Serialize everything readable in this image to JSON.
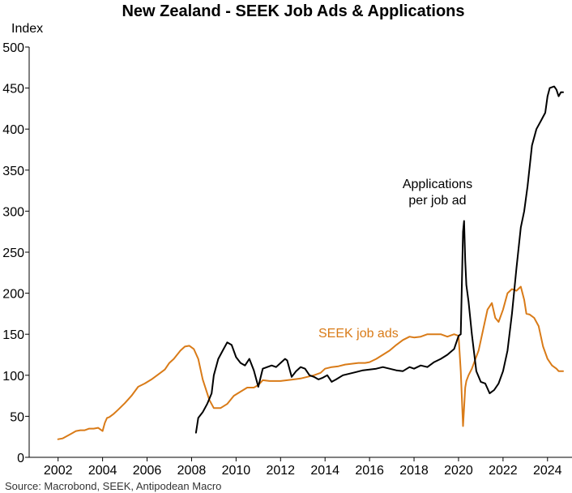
{
  "chart_data": {
    "type": "line",
    "title": "New Zealand - SEEK Job Ads & Applications",
    "ylabel": "Index",
    "source": "Source: Macrobond, SEEK, Antipodean Macro",
    "xlim": [
      2000.7,
      2025.1
    ],
    "ylim": [
      0,
      500
    ],
    "x_ticks": [
      2002,
      2004,
      2006,
      2008,
      2010,
      2012,
      2014,
      2016,
      2018,
      2020,
      2022,
      2024
    ],
    "y_ticks": [
      0,
      50,
      100,
      150,
      200,
      250,
      300,
      350,
      400,
      450,
      500
    ],
    "grid": false,
    "colors": {
      "job_ads": "#d97b18",
      "applications": "#000000"
    },
    "annotations": {
      "applications": [
        "Applications",
        "per job ad"
      ],
      "job_ads": "SEEK job ads"
    },
    "series": [
      {
        "name": "SEEK job ads",
        "key": "job_ads",
        "x": [
          2002.0,
          2002.2,
          2002.4,
          2002.6,
          2002.8,
          2003.0,
          2003.2,
          2003.4,
          2003.6,
          2003.8,
          2004.0,
          2004.1,
          2004.2,
          2004.3,
          2004.5,
          2004.7,
          2005.0,
          2005.3,
          2005.6,
          2005.9,
          2006.2,
          2006.5,
          2006.8,
          2007.0,
          2007.2,
          2007.5,
          2007.7,
          2007.9,
          2008.1,
          2008.3,
          2008.5,
          2008.8,
          2009.0,
          2009.3,
          2009.6,
          2009.9,
          2010.2,
          2010.5,
          2010.8,
          2011.0,
          2011.2,
          2011.5,
          2011.8,
          2012.0,
          2012.3,
          2012.6,
          2012.9,
          2013.2,
          2013.5,
          2013.8,
          2014.0,
          2014.3,
          2014.6,
          2014.9,
          2015.2,
          2015.5,
          2015.8,
          2016.0,
          2016.3,
          2016.6,
          2016.9,
          2017.2,
          2017.5,
          2017.8,
          2018.0,
          2018.3,
          2018.6,
          2018.9,
          2019.2,
          2019.5,
          2019.8,
          2020.0,
          2020.1,
          2020.2,
          2020.25,
          2020.3,
          2020.35,
          2020.45,
          2020.6,
          2020.9,
          2021.1,
          2021.3,
          2021.5,
          2021.65,
          2021.8,
          2022.0,
          2022.2,
          2022.4,
          2022.6,
          2022.8,
          2022.95,
          2023.05,
          2023.2,
          2023.4,
          2023.6,
          2023.8,
          2024.0,
          2024.2,
          2024.4,
          2024.5,
          2024.7
        ],
        "values": [
          22,
          23,
          26,
          29,
          32,
          33,
          33,
          35,
          35,
          36,
          32,
          42,
          48,
          49,
          53,
          58,
          66,
          75,
          86,
          90,
          95,
          101,
          107,
          115,
          120,
          130,
          135,
          136,
          132,
          120,
          95,
          70,
          60,
          60,
          65,
          75,
          80,
          85,
          85,
          88,
          94,
          93,
          93,
          93,
          94,
          95,
          96,
          98,
          100,
          103,
          108,
          110,
          111,
          113,
          114,
          115,
          115,
          116,
          120,
          125,
          130,
          137,
          143,
          147,
          146,
          147,
          150,
          150,
          150,
          147,
          150,
          148,
          105,
          38,
          60,
          85,
          93,
          100,
          108,
          130,
          155,
          180,
          188,
          170,
          165,
          180,
          200,
          205,
          203,
          208,
          192,
          175,
          174,
          170,
          160,
          135,
          120,
          112,
          108,
          105,
          105
        ]
      },
      {
        "name": "Applications per job ad",
        "key": "applications",
        "x": [
          2008.2,
          2008.3,
          2008.5,
          2008.7,
          2008.9,
          2009.0,
          2009.2,
          2009.4,
          2009.6,
          2009.8,
          2010.0,
          2010.2,
          2010.4,
          2010.6,
          2010.8,
          2011.0,
          2011.2,
          2011.4,
          2011.6,
          2011.8,
          2012.0,
          2012.2,
          2012.3,
          2012.5,
          2012.7,
          2012.9,
          2013.1,
          2013.3,
          2013.5,
          2013.7,
          2013.9,
          2014.1,
          2014.3,
          2014.5,
          2014.8,
          2015.1,
          2015.4,
          2015.7,
          2016.0,
          2016.3,
          2016.6,
          2016.9,
          2017.2,
          2017.5,
          2017.8,
          2018.0,
          2018.3,
          2018.6,
          2018.9,
          2019.2,
          2019.5,
          2019.8,
          2020.0,
          2020.1,
          2020.2,
          2020.25,
          2020.3,
          2020.35,
          2020.45,
          2020.6,
          2020.8,
          2021.0,
          2021.2,
          2021.4,
          2021.6,
          2021.8,
          2022.0,
          2022.2,
          2022.4,
          2022.6,
          2022.8,
          2022.95,
          2023.1,
          2023.3,
          2023.5,
          2023.7,
          2023.9,
          2024.0,
          2024.1,
          2024.3,
          2024.4,
          2024.5,
          2024.6,
          2024.7
        ],
        "values": [
          30,
          48,
          55,
          65,
          78,
          100,
          120,
          130,
          140,
          137,
          122,
          115,
          112,
          120,
          106,
          86,
          108,
          110,
          112,
          110,
          115,
          120,
          118,
          98,
          105,
          110,
          108,
          100,
          98,
          95,
          97,
          100,
          92,
          95,
          100,
          102,
          104,
          106,
          107,
          108,
          110,
          108,
          106,
          105,
          110,
          108,
          112,
          110,
          116,
          120,
          125,
          132,
          148,
          150,
          275,
          288,
          240,
          210,
          190,
          150,
          105,
          92,
          90,
          78,
          82,
          90,
          105,
          130,
          175,
          230,
          280,
          300,
          330,
          380,
          400,
          410,
          420,
          440,
          450,
          452,
          448,
          440,
          445,
          445
        ]
      }
    ]
  }
}
